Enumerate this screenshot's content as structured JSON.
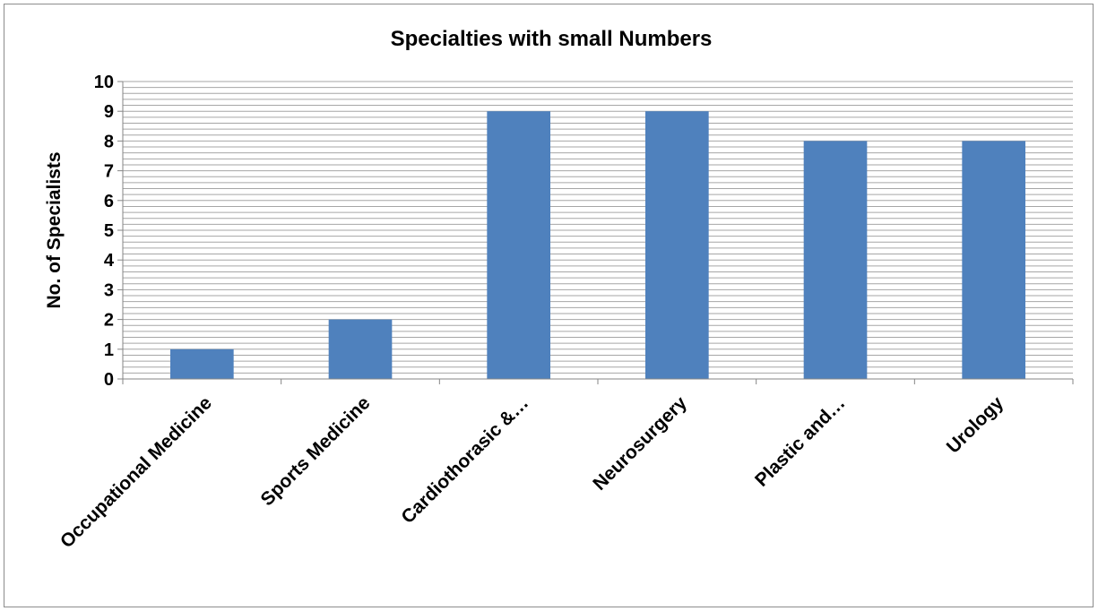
{
  "chart_data": {
    "type": "bar",
    "title": "Specialties with small Numbers",
    "xlabel": "",
    "ylabel": "No. of Specialists",
    "categories": [
      "Occupational Medicine",
      "Sports Medicine",
      "Cardiothorasic &…",
      "Neurosurgery",
      "Plastic and…",
      "Urology"
    ],
    "values": [
      1,
      2,
      9,
      9,
      8,
      8
    ],
    "ylim": [
      0,
      10
    ],
    "yticks": [
      0,
      1,
      2,
      3,
      4,
      5,
      6,
      7,
      8,
      9,
      10
    ],
    "minor_grid_step": 0.2,
    "grid": true,
    "legend": "none",
    "bar_color": "#4f81bd",
    "grid_color": "#a6a6a6"
  }
}
